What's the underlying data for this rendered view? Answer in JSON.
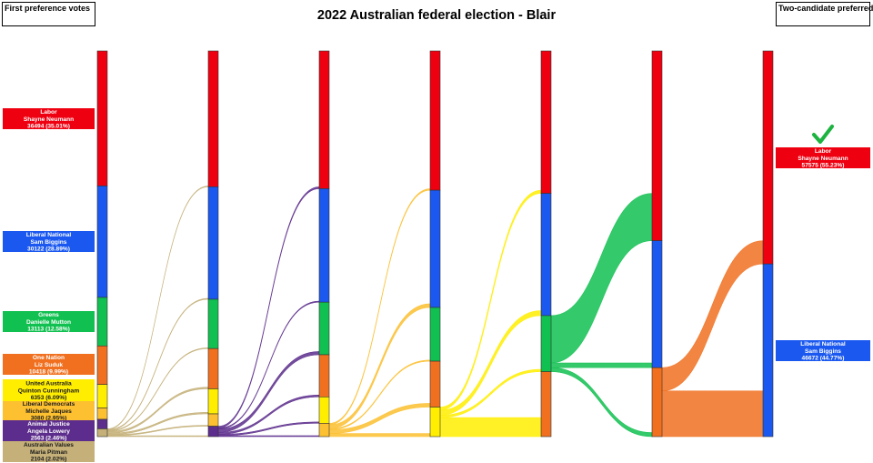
{
  "chart_data": {
    "type": "sankey",
    "title": "2022 Australian federal election - Blair",
    "left_box_label": "First preference votes",
    "right_box_label": "Two-candidate preferred",
    "total_votes": 104247,
    "parties": {
      "lab": {
        "color": "#ee0010"
      },
      "lnp": {
        "color": "#1a58f0"
      },
      "grn": {
        "color": "#10c050"
      },
      "onp": {
        "color": "#f07020"
      },
      "uap": {
        "color": "#ffee00"
      },
      "ldp": {
        "color": "#fcc030"
      },
      "ajp": {
        "color": "#5c2d8c"
      },
      "avp": {
        "color": "#c4b078"
      }
    },
    "first_preferences": [
      {
        "key": "lab",
        "party": "Labor",
        "name": "Shayne Neumann",
        "result": "36494 (35.01%)",
        "votes": 36494
      },
      {
        "key": "lnp",
        "party": "Liberal National",
        "name": "Sam Biggins",
        "result": "30122 (28.89%)",
        "votes": 30122
      },
      {
        "key": "grn",
        "party": "Greens",
        "name": "Danielle Mutton",
        "result": "13113 (12.58%)",
        "votes": 13113
      },
      {
        "key": "onp",
        "party": "One Nation",
        "name": "Liz Suduk",
        "result": "10418 (9.99%)",
        "votes": 10418
      },
      {
        "key": "uap",
        "party": "United Australia",
        "name": "Quinton Cunningham",
        "result": "6353 (6.09%)",
        "votes": 6353
      },
      {
        "key": "ldp",
        "party": "Liberal Democrats",
        "name": "Michelle Jaques",
        "result": "3080 (2.95%)",
        "votes": 3080
      },
      {
        "key": "ajp",
        "party": "Animal Justice",
        "name": "Angela Lowery",
        "result": "2563 (2.46%)",
        "votes": 2563
      },
      {
        "key": "avp",
        "party": "Australian Values",
        "name": "Maria Pitman",
        "result": "2104 (2.02%)",
        "votes": 2104
      }
    ],
    "two_candidate_preferred": [
      {
        "key": "lab",
        "party": "Labor",
        "name": "Shayne Neumann",
        "result": "57575 (55.23%)",
        "votes": 57575,
        "winner": true
      },
      {
        "key": "lnp",
        "party": "Liberal National",
        "name": "Sam Biggins",
        "result": "46672 (44.77%)",
        "votes": 46672,
        "winner": false
      }
    ],
    "rounds": [
      {
        "segments": [
          {
            "key": "lab",
            "votes": 36494
          },
          {
            "key": "lnp",
            "votes": 30122
          },
          {
            "key": "grn",
            "votes": 13113
          },
          {
            "key": "onp",
            "votes": 10418
          },
          {
            "key": "uap",
            "votes": 6353
          },
          {
            "key": "ldp",
            "votes": 3080
          },
          {
            "key": "ajp",
            "votes": 2563
          },
          {
            "key": "avp",
            "votes": 2104
          }
        ],
        "excluded": "avp",
        "flows": [
          {
            "to": "lab",
            "votes": 240
          },
          {
            "to": "lnp",
            "votes": 260
          },
          {
            "to": "grn",
            "votes": 220
          },
          {
            "to": "onp",
            "votes": 460
          },
          {
            "to": "uap",
            "votes": 420
          },
          {
            "to": "ldp",
            "votes": 260
          },
          {
            "to": "ajp",
            "votes": 244
          }
        ]
      },
      {
        "segments": [
          {
            "key": "lab",
            "votes": 36734
          },
          {
            "key": "lnp",
            "votes": 30382
          },
          {
            "key": "grn",
            "votes": 13333
          },
          {
            "key": "onp",
            "votes": 10878
          },
          {
            "key": "uap",
            "votes": 6773
          },
          {
            "key": "ldp",
            "votes": 3340
          },
          {
            "key": "ajp",
            "votes": 2807
          }
        ],
        "excluded": "ajp",
        "flows": [
          {
            "to": "lab",
            "votes": 500
          },
          {
            "to": "lnp",
            "votes": 290
          },
          {
            "to": "grn",
            "votes": 880
          },
          {
            "to": "onp",
            "votes": 510
          },
          {
            "to": "uap",
            "votes": 370
          },
          {
            "to": "ldp",
            "votes": 257
          }
        ]
      },
      {
        "segments": [
          {
            "key": "lab",
            "votes": 37234
          },
          {
            "key": "lnp",
            "votes": 30672
          },
          {
            "key": "grn",
            "votes": 14213
          },
          {
            "key": "onp",
            "votes": 11388
          },
          {
            "key": "uap",
            "votes": 7143
          },
          {
            "key": "ldp",
            "votes": 3597
          }
        ],
        "excluded": "ldp",
        "flows": [
          {
            "to": "lab",
            "votes": 420
          },
          {
            "to": "lnp",
            "votes": 1010
          },
          {
            "to": "grn",
            "votes": 310
          },
          {
            "to": "onp",
            "votes": 1010
          },
          {
            "to": "uap",
            "votes": 847
          }
        ]
      },
      {
        "segments": [
          {
            "key": "lab",
            "votes": 37654
          },
          {
            "key": "lnp",
            "votes": 31682
          },
          {
            "key": "grn",
            "votes": 14523
          },
          {
            "key": "onp",
            "votes": 12398
          },
          {
            "key": "uap",
            "votes": 7990
          }
        ],
        "excluded": "uap",
        "flows": [
          {
            "to": "lab",
            "votes": 850
          },
          {
            "to": "lnp",
            "votes": 1350
          },
          {
            "to": "grn",
            "votes": 640
          },
          {
            "to": "onp",
            "votes": 5150
          }
        ]
      },
      {
        "segments": [
          {
            "key": "lab",
            "votes": 38504
          },
          {
            "key": "lnp",
            "votes": 33032
          },
          {
            "key": "grn",
            "votes": 15163
          },
          {
            "key": "onp",
            "votes": 17548
          }
        ],
        "excluded": "grn",
        "flows": [
          {
            "to": "lab",
            "votes": 12790
          },
          {
            "to": "lnp",
            "votes": 1280
          },
          {
            "to": "onp",
            "votes": 1093
          }
        ]
      },
      {
        "segments": [
          {
            "key": "lab",
            "votes": 51294
          },
          {
            "key": "lnp",
            "votes": 34312
          },
          {
            "key": "onp",
            "votes": 18641
          }
        ],
        "excluded": "onp",
        "flows": [
          {
            "to": "lab",
            "votes": 6281
          },
          {
            "to": "lnp",
            "votes": 12360
          }
        ]
      },
      {
        "segments": [
          {
            "key": "lab",
            "votes": 57575
          },
          {
            "key": "lnp",
            "votes": 46672
          }
        ]
      }
    ]
  }
}
